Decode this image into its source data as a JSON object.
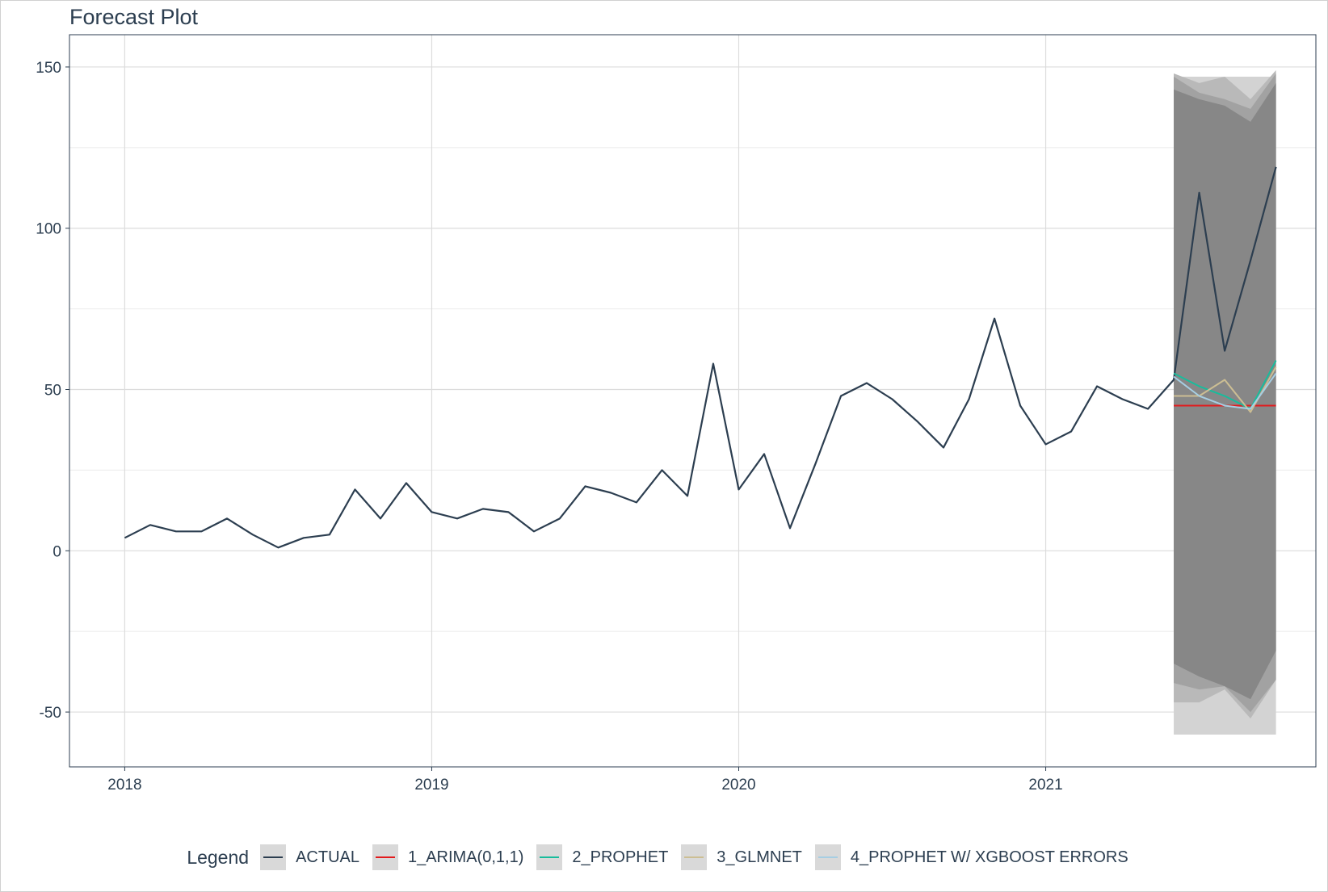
{
  "title": "Forecast Plot",
  "chart_data": {
    "type": "line",
    "title": "Forecast Plot",
    "xlabel": "",
    "ylabel": "",
    "xlim": [
      2017.82,
      2021.88
    ],
    "ylim": [
      -67,
      160
    ],
    "grid": true,
    "legend_position": "bottom",
    "x_ticks": [
      2018,
      2019,
      2020,
      2021
    ],
    "x_tick_labels": [
      "2018",
      "2019",
      "2020",
      "2021"
    ],
    "y_ticks": [
      -50,
      0,
      50,
      100,
      150
    ],
    "y_tick_labels": [
      "-50",
      "0",
      "50",
      "100",
      "150"
    ],
    "legend_title": "Legend",
    "series": [
      {
        "name": "ACTUAL",
        "color": "#2c3e50",
        "x": [
          2018.0,
          2018.083,
          2018.167,
          2018.25,
          2018.333,
          2018.417,
          2018.5,
          2018.583,
          2018.667,
          2018.75,
          2018.833,
          2018.917,
          2019.0,
          2019.083,
          2019.167,
          2019.25,
          2019.333,
          2019.417,
          2019.5,
          2019.583,
          2019.667,
          2019.75,
          2019.833,
          2019.917,
          2020.0,
          2020.083,
          2020.167,
          2020.25,
          2020.333,
          2020.417,
          2020.5,
          2020.583,
          2020.667,
          2020.75,
          2020.833,
          2020.917,
          2021.0,
          2021.083,
          2021.167,
          2021.25,
          2021.333,
          2021.417,
          2021.5,
          2021.583,
          2021.667,
          2021.75
        ],
        "values": [
          4,
          8,
          6,
          6,
          10,
          5,
          1,
          4,
          5,
          19,
          10,
          21,
          12,
          10,
          13,
          12,
          6,
          10,
          20,
          18,
          15,
          25,
          17,
          58,
          19,
          30,
          7,
          27,
          48,
          52,
          47,
          40,
          32,
          47,
          72,
          45,
          33,
          37,
          51,
          47,
          44,
          53,
          111,
          62,
          90,
          119
        ]
      },
      {
        "name": "1_ARIMA(0,1,1)",
        "color": "#e31a1c",
        "x": [
          2021.417,
          2021.5,
          2021.583,
          2021.667,
          2021.75
        ],
        "values": [
          45,
          45,
          45,
          45,
          45
        ]
      },
      {
        "name": "2_PROPHET",
        "color": "#18bc9c",
        "x": [
          2021.417,
          2021.5,
          2021.583,
          2021.667,
          2021.75
        ],
        "values": [
          55,
          51,
          48,
          44,
          59
        ]
      },
      {
        "name": "3_GLMNET",
        "color": "#ccbe93",
        "x": [
          2021.417,
          2021.5,
          2021.583,
          2021.667,
          2021.75
        ],
        "values": [
          48,
          48,
          53,
          43,
          57
        ]
      },
      {
        "name": "4_PROPHET W/ XGBOOST ERRORS",
        "color": "#a6cee3",
        "x": [
          2021.417,
          2021.5,
          2021.583,
          2021.667,
          2021.75
        ],
        "values": [
          54,
          48,
          45,
          44,
          55
        ]
      }
    ],
    "confidence_bands": [
      {
        "x": [
          2021.417,
          2021.5,
          2021.583,
          2021.667,
          2021.75
        ],
        "upper": [
          147,
          147,
          147,
          147,
          147
        ],
        "lower": [
          -57,
          -57,
          -57,
          -57,
          -57
        ]
      },
      {
        "x": [
          2021.417,
          2021.5,
          2021.583,
          2021.667,
          2021.75
        ],
        "upper": [
          148,
          145,
          147,
          140,
          149
        ],
        "lower": [
          -47,
          -47,
          -43,
          -52,
          -40
        ]
      },
      {
        "x": [
          2021.417,
          2021.5,
          2021.583,
          2021.667,
          2021.75
        ],
        "upper": [
          147,
          142,
          140,
          137,
          148
        ],
        "lower": [
          -41,
          -43,
          -42,
          -50,
          -40
        ]
      },
      {
        "x": [
          2021.417,
          2021.5,
          2021.583,
          2021.667,
          2021.75
        ],
        "upper": [
          143,
          140,
          138,
          133,
          145
        ],
        "lower": [
          -35,
          -39,
          -42,
          -46,
          -31
        ]
      }
    ]
  },
  "legend": {
    "title": "Legend",
    "items": [
      {
        "label": "ACTUAL",
        "color": "#2c3e50"
      },
      {
        "label": "1_ARIMA(0,1,1)",
        "color": "#e31a1c"
      },
      {
        "label": "2_PROPHET",
        "color": "#18bc9c"
      },
      {
        "label": "3_GLMNET",
        "color": "#ccbe93"
      },
      {
        "label": "4_PROPHET W/ XGBOOST ERRORS",
        "color": "#a6cee3"
      }
    ]
  }
}
